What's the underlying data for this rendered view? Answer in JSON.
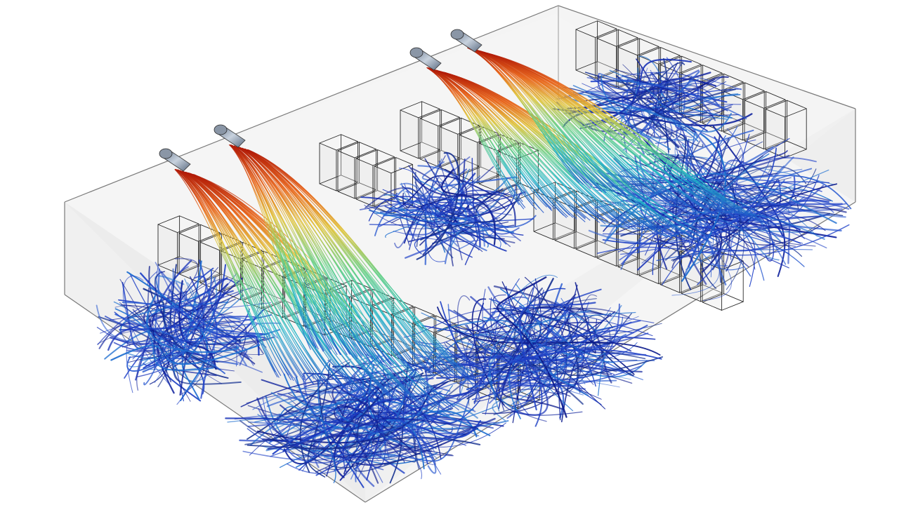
{
  "scene": {
    "description_visible_text": "",
    "colors": {
      "background": "#ffffff",
      "room_wall_fill": "#eeeeee",
      "room_edge": "#7a7a7a",
      "rack_edge": "#2a2a2a",
      "duct_body": "#9aa8b8",
      "velocity_colormap": [
        "#0b1a8c",
        "#1d3fc4",
        "#1f8fd6",
        "#1fc4c0",
        "#5fd27a",
        "#c8d93a",
        "#f0a020",
        "#e04a10",
        "#b01a08"
      ]
    },
    "inlets": [
      {
        "name": "inlet-duct-1"
      },
      {
        "name": "inlet-duct-2"
      },
      {
        "name": "inlet-duct-3"
      },
      {
        "name": "inlet-duct-4"
      }
    ],
    "rack_rows": [
      {
        "name": "rack-row-front-left"
      },
      {
        "name": "rack-row-middle"
      },
      {
        "name": "rack-row-back-right"
      },
      {
        "name": "rack-row-far-back"
      }
    ]
  }
}
